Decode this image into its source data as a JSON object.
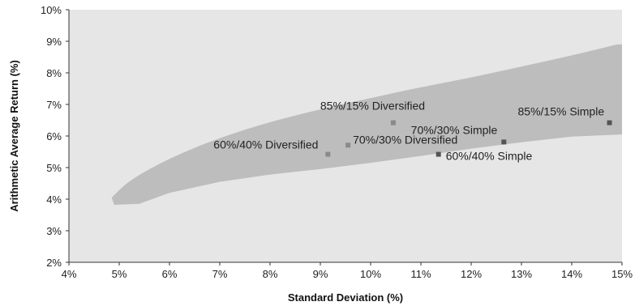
{
  "chart_data": {
    "type": "scatter",
    "xlabel": "Standard Deviation (%)",
    "ylabel": "Arithmetic Average Return (%)",
    "xlim": [
      4,
      15
    ],
    "ylim": [
      2,
      10
    ],
    "x_ticks": [
      "4%",
      "5%",
      "6%",
      "7%",
      "8%",
      "9%",
      "10%",
      "11%",
      "12%",
      "13%",
      "14%",
      "15%"
    ],
    "y_ticks": [
      "2%",
      "3%",
      "4%",
      "5%",
      "6%",
      "7%",
      "8%",
      "9%",
      "10%"
    ],
    "grid": false,
    "colors": {
      "plot_background": "#e6e6e6",
      "band": "#bdbdbd",
      "marker_diversified": "#8a8a8a",
      "marker_simple": "#555555"
    },
    "band": {
      "upper": [
        [
          4.85,
          4.05
        ],
        [
          5.2,
          4.6
        ],
        [
          6.0,
          5.3
        ],
        [
          7.0,
          5.95
        ],
        [
          8.0,
          6.45
        ],
        [
          9.0,
          6.85
        ],
        [
          10.0,
          7.2
        ],
        [
          11.0,
          7.55
        ],
        [
          12.0,
          7.85
        ],
        [
          13.0,
          8.2
        ],
        [
          14.0,
          8.55
        ],
        [
          14.9,
          8.9
        ]
      ],
      "lower": [
        [
          15.0,
          6.05
        ],
        [
          14.0,
          5.98
        ],
        [
          13.0,
          5.8
        ],
        [
          12.0,
          5.6
        ],
        [
          11.0,
          5.37
        ],
        [
          10.0,
          5.15
        ],
        [
          9.0,
          4.95
        ],
        [
          8.0,
          4.78
        ],
        [
          7.0,
          4.55
        ],
        [
          6.0,
          4.2
        ],
        [
          5.4,
          3.85
        ],
        [
          4.9,
          3.82
        ]
      ]
    },
    "points": [
      {
        "label": "85%/15% Diversified",
        "x": 10.45,
        "y": 6.42
      },
      {
        "label": "70%/30% Diversified",
        "x": 9.55,
        "y": 5.71
      },
      {
        "label": "60%/40% Diversified",
        "x": 9.15,
        "y": 5.42
      },
      {
        "label": "85%/15% Simple",
        "x": 14.75,
        "y": 6.42
      },
      {
        "label": "70%/30% Simple",
        "x": 12.65,
        "y": 5.81
      },
      {
        "label": "60%/40% Simple",
        "x": 11.35,
        "y": 5.42
      }
    ]
  }
}
